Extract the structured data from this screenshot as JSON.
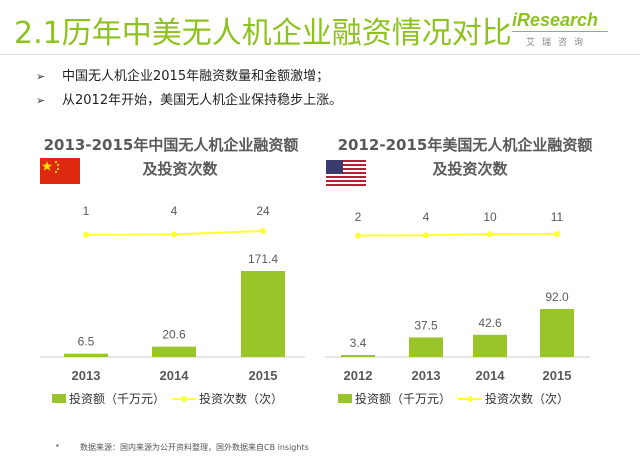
{
  "title": "2.1历年中美无人机企业融资情况对比",
  "logo": {
    "main": "iResearch",
    "sub": "艾瑞咨询"
  },
  "bullets": [
    {
      "arrow": "➢",
      "text": "中国无人机企业2015年融资数量和金额激增；"
    },
    {
      "arrow": "➢",
      "text": "从2012年开始，美国无人机企业保持稳步上涨。"
    }
  ],
  "colors": {
    "accent": "#8dc21f",
    "bar": "#9ac52a",
    "line": "#ffff33",
    "flag_cn": "#de2910",
    "flag_us_red": "#b22234",
    "flag_us_blue": "#3c3b6e"
  },
  "icons": {
    "cn_flag": "china-flag-icon",
    "us_flag": "usa-flag-icon"
  },
  "legend": {
    "bar_label": "投资额（千万元）",
    "line_label": "投资次数（次）"
  },
  "footnote": {
    "dot": "▪",
    "text": "数据来源：国内来源为公开资料整理，国外数据来自CB insights"
  },
  "chart_data": [
    {
      "type": "bar",
      "title_line1": "2013-2015年中国无人机企业融资额",
      "title_line2": "及投资次数",
      "categories": [
        "2013",
        "2014",
        "2015"
      ],
      "series": [
        {
          "name": "投资额（千万元）",
          "type": "bar",
          "values": [
            6.5,
            20.6,
            171.4
          ]
        },
        {
          "name": "投资次数（次）",
          "type": "line",
          "values": [
            1,
            4,
            24
          ]
        }
      ],
      "legend": "bottom",
      "grid": false
    },
    {
      "type": "bar",
      "title_line1": "2012-2015年美国无人机企业融资额",
      "title_line2": "及投资次数",
      "categories": [
        "2012",
        "2013",
        "2014",
        "2015"
      ],
      "series": [
        {
          "name": "投资额（千万元）",
          "type": "bar",
          "values": [
            3.4,
            37.5,
            42.6,
            92.0
          ]
        },
        {
          "name": "投资次数（次）",
          "type": "line",
          "values": [
            2,
            4,
            10,
            11
          ]
        }
      ],
      "legend": "bottom",
      "grid": false
    }
  ]
}
